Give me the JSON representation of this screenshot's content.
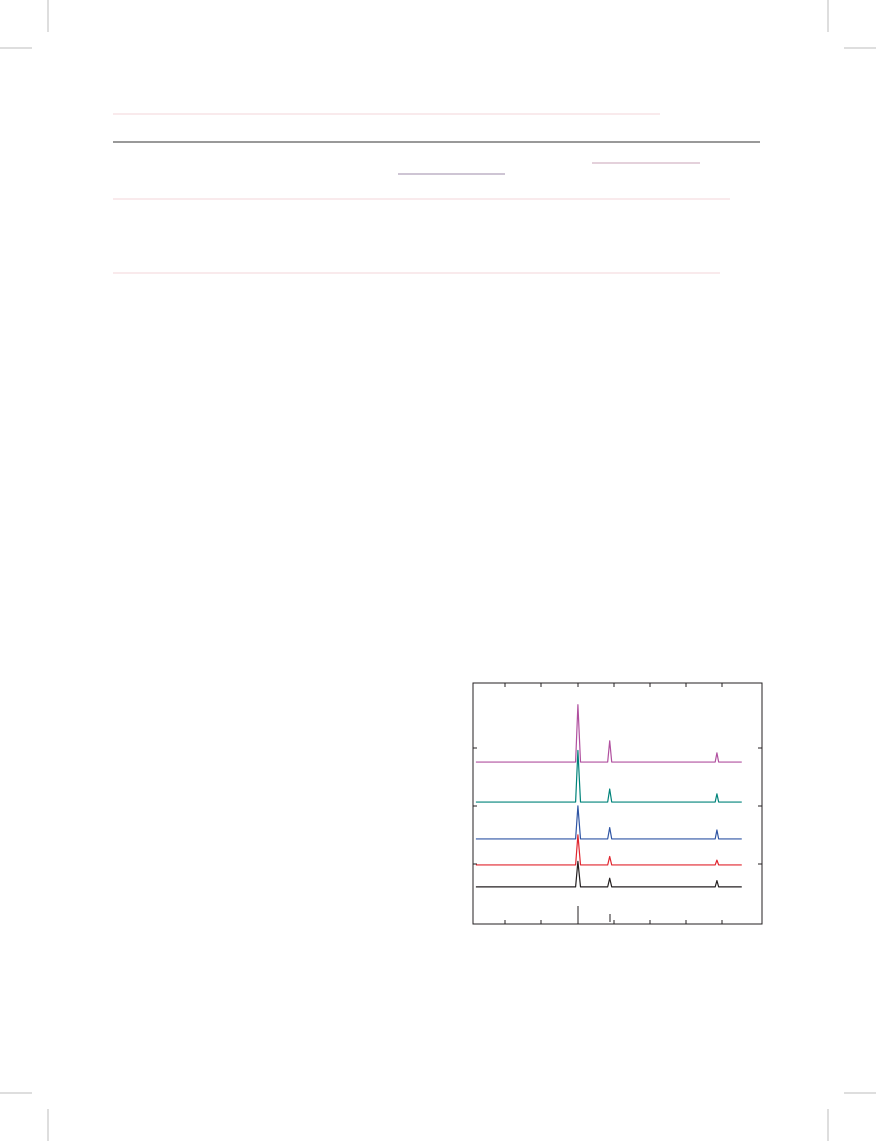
{
  "chart_data": {
    "type": "line",
    "x": [
      1,
      35.5,
      36.3,
      37.2,
      46.6,
      47.3,
      48.0,
      83.8,
      84.4,
      85.0,
      93
    ],
    "xlim": [
      0,
      100
    ],
    "ylim": [
      0,
      100
    ],
    "series": [
      {
        "color": "#231f20",
        "values": [
          15.4,
          15.4,
          26,
          15.4,
          15.4,
          19,
          15.4,
          15.4,
          18,
          15.4,
          15.4
        ]
      },
      {
        "color": "#e0252e",
        "values": [
          24.5,
          24.5,
          37,
          24.5,
          24.5,
          28,
          24.5,
          24.5,
          26.5,
          24.5,
          24.5
        ]
      },
      {
        "color": "#2f55a4",
        "values": [
          35.3,
          35.3,
          49,
          35.3,
          35.3,
          40,
          35.3,
          35.3,
          39,
          35.3,
          35.3
        ]
      },
      {
        "color": "#00837a",
        "values": [
          50.6,
          50.6,
          72,
          50.6,
          50.6,
          56,
          50.6,
          50.6,
          54,
          50.6,
          50.6
        ]
      },
      {
        "color": "#b0509f",
        "values": [
          67.2,
          67.2,
          91,
          67.2,
          67.2,
          76,
          67.2,
          67.2,
          71,
          67.2,
          67.2
        ]
      }
    ]
  }
}
